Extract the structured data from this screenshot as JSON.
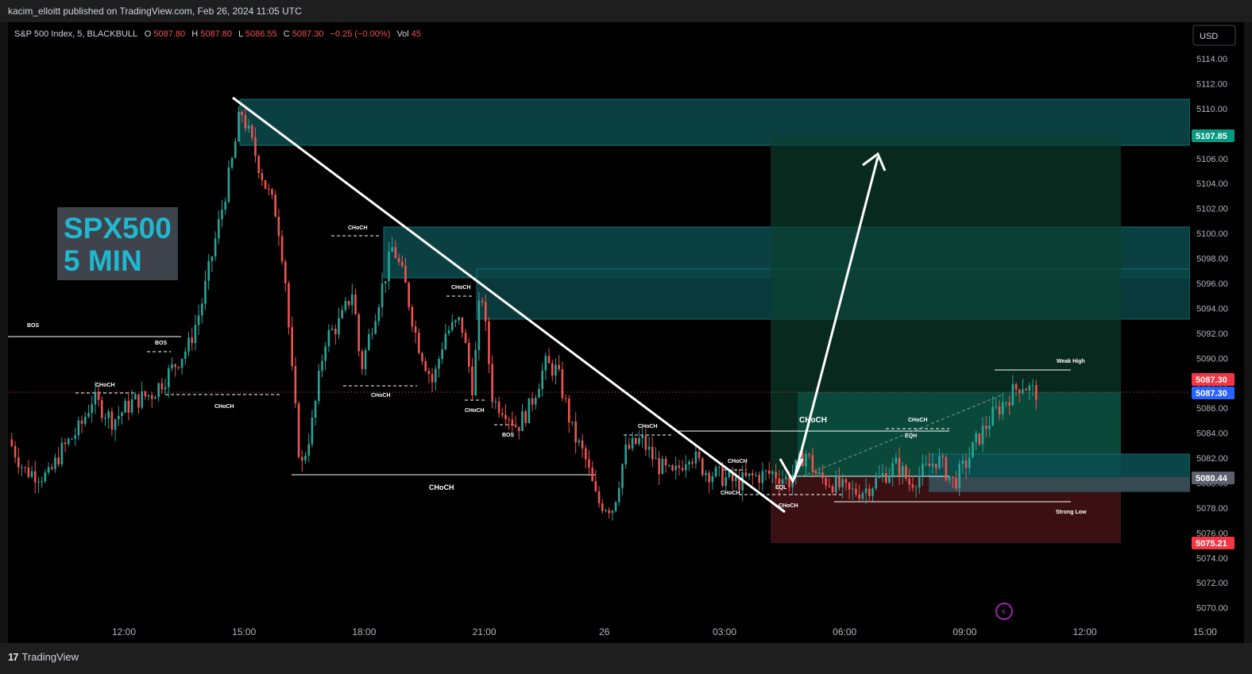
{
  "header": {
    "publisher": "kacim_elloitt published on TradingView.com, Feb 26, 2024 11:05 UTC"
  },
  "legend": {
    "symbol": "S&P 500 Index, 5, BLACKBULL",
    "o_label": "O",
    "o": "5087.80",
    "h_label": "H",
    "h": "5087.80",
    "l_label": "L",
    "l": "5086.55",
    "c_label": "C",
    "c": "5087.30",
    "change": "−0.25 (−0.00%)",
    "vol_label": "Vol",
    "vol": "45"
  },
  "currency_button": "USD",
  "overlay_title": {
    "line1": "SPX500",
    "line2": "5 MIN"
  },
  "price_tags": {
    "target": "5107.85",
    "last_red": "5087.30",
    "last_blue": "5087.30",
    "entry": "5080.44",
    "stop": "5075.21"
  },
  "footer": {
    "brand": "TradingView"
  },
  "colors": {
    "bull": "#26a69a",
    "bear": "#ef5350",
    "zone_teal": "#0d4f52",
    "target_tag": "#089981",
    "stop_tag": "#f23645",
    "blue_tag": "#2962ff",
    "entry_tag": "#5d606b"
  },
  "chart_data": {
    "type": "candlestick",
    "symbol": "S&P 500 Index",
    "timeframe": "5",
    "y_range": [
      5068.5,
      5115.5
    ],
    "y_ticks": [
      5114,
      5112,
      5110,
      5108,
      5106,
      5104,
      5102,
      5100,
      5098,
      5096,
      5094,
      5092,
      5090,
      5088,
      5086,
      5084,
      5082,
      5080,
      5078,
      5076,
      5074,
      5072,
      5070
    ],
    "x_ticks": [
      "12:00",
      "15:00",
      "18:00",
      "21:00",
      "26",
      "03:00",
      "06:00",
      "09:00",
      "12:00",
      "15:00"
    ],
    "price_path": [
      [
        9.2,
        5083.5
      ],
      [
        9.6,
        5081.0
      ],
      [
        10.2,
        5080.5
      ],
      [
        10.5,
        5082.5
      ],
      [
        11.0,
        5084.5
      ],
      [
        11.3,
        5086.8
      ],
      [
        11.8,
        5085.0
      ],
      [
        12.3,
        5086.5
      ],
      [
        12.8,
        5087.2
      ],
      [
        13.2,
        5088.8
      ],
      [
        13.7,
        5091.0
      ],
      [
        14.0,
        5094.0
      ],
      [
        14.4,
        5100.0
      ],
      [
        14.8,
        5106.0
      ],
      [
        15.0,
        5110.0
      ],
      [
        15.3,
        5107.0
      ],
      [
        15.6,
        5104.0
      ],
      [
        15.9,
        5101.5
      ],
      [
        16.1,
        5097.0
      ],
      [
        16.3,
        5088.0
      ],
      [
        16.5,
        5081.0
      ],
      [
        16.8,
        5085.0
      ],
      [
        17.1,
        5091.5
      ],
      [
        17.5,
        5093.0
      ],
      [
        17.8,
        5095.5
      ],
      [
        18.0,
        5089.0
      ],
      [
        18.3,
        5093.0
      ],
      [
        18.6,
        5096.5
      ],
      [
        18.8,
        5099.0
      ],
      [
        19.1,
        5096.0
      ],
      [
        19.4,
        5091.5
      ],
      [
        19.8,
        5088.0
      ],
      [
        20.1,
        5092.0
      ],
      [
        20.5,
        5093.0
      ],
      [
        20.8,
        5087.5
      ],
      [
        21.0,
        5096.0
      ],
      [
        21.3,
        5086.5
      ],
      [
        21.6,
        5086.0
      ],
      [
        21.9,
        5084.5
      ],
      [
        22.2,
        5086.0
      ],
      [
        22.6,
        5089.5
      ],
      [
        22.9,
        5089.0
      ],
      [
        23.3,
        5084.0
      ],
      [
        23.6,
        5082.0
      ],
      [
        23.9,
        5078.5
      ],
      [
        24.3,
        5078.0
      ],
      [
        24.6,
        5082.5
      ],
      [
        25.0,
        5083.5
      ],
      [
        25.4,
        5081.5
      ],
      [
        25.8,
        5080.5
      ],
      [
        26.2,
        5082.5
      ],
      [
        26.6,
        5081.0
      ],
      [
        27.0,
        5080.5
      ],
      [
        27.4,
        5080.0
      ],
      [
        27.8,
        5080.5
      ],
      [
        28.3,
        5080.8
      ],
      [
        28.7,
        5080.2
      ],
      [
        29.1,
        5082.5
      ],
      [
        29.4,
        5080.5
      ],
      [
        29.8,
        5080.0
      ],
      [
        30.2,
        5079.2
      ],
      [
        30.6,
        5079.5
      ],
      [
        31.0,
        5080.5
      ],
      [
        31.4,
        5081.5
      ],
      [
        31.7,
        5080.0
      ],
      [
        32.1,
        5081.0
      ],
      [
        32.4,
        5082.0
      ],
      [
        32.8,
        5080.0
      ],
      [
        33.1,
        5081.5
      ],
      [
        33.4,
        5083.5
      ],
      [
        33.8,
        5085.5
      ],
      [
        34.2,
        5087.0
      ],
      [
        34.5,
        5088.0
      ],
      [
        34.8,
        5087.3
      ]
    ],
    "zones": [
      {
        "type": "supply",
        "from_price": 5107.3,
        "to_price": 5110.9
      },
      {
        "type": "supply",
        "from_price": 5096.3,
        "to_price": 5100.5
      },
      {
        "type": "supply",
        "from_price": 5093.1,
        "to_price": 5097.2
      },
      {
        "type": "demand",
        "from_price": 5079.3,
        "to_price": 5082.3
      }
    ],
    "position": {
      "type": "long",
      "entry": 5080.44,
      "target": 5107.85,
      "stop": 5075.21
    },
    "annotations": {
      "bos": "BOS",
      "choch": "CHoCH",
      "eql": "EQL",
      "eqh": "EQH",
      "weak_high": "Weak High",
      "strong_low": "Strong Low"
    },
    "grid": false,
    "legend_position": "top-left"
  }
}
